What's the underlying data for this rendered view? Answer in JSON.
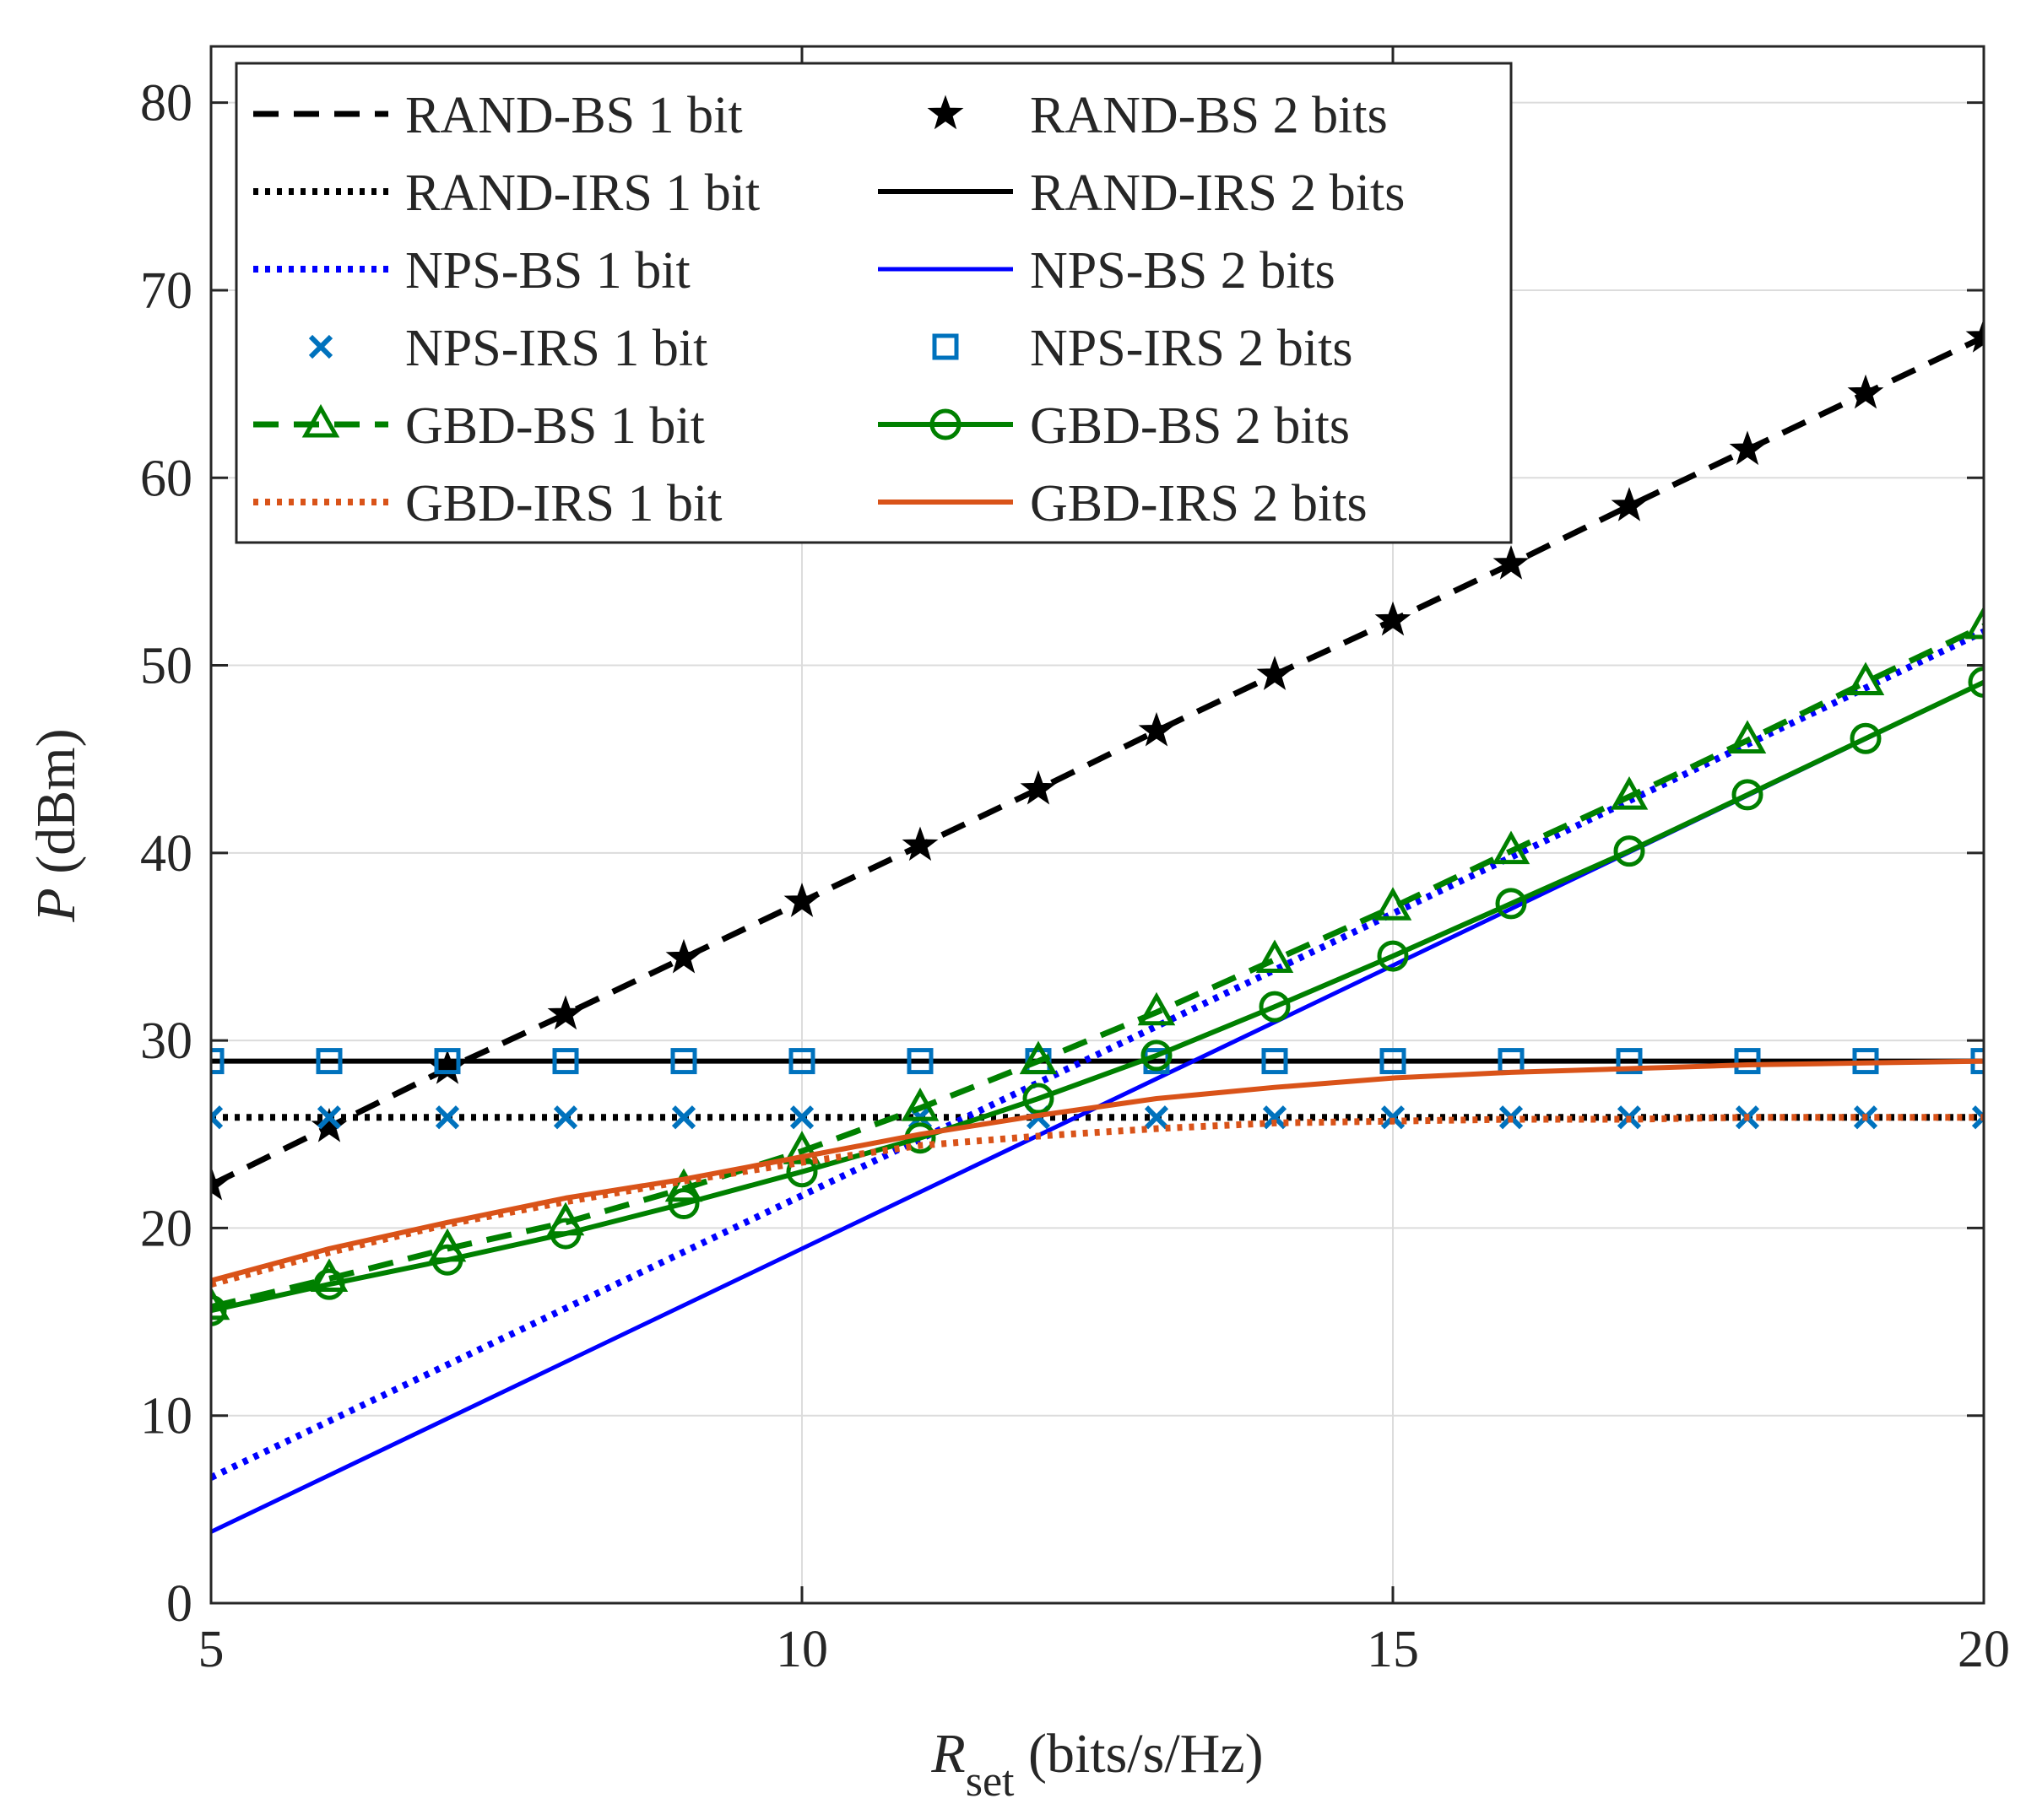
{
  "chart_data": {
    "type": "line",
    "xlabel": {
      "main": "R",
      "sub": "set",
      "rest": " (bits/s/Hz)"
    },
    "ylabel": {
      "main": "P",
      "rest": " (dBm)"
    },
    "xlim": [
      5,
      20
    ],
    "ylim": [
      0,
      83
    ],
    "xticks": [
      5,
      10,
      15,
      20
    ],
    "yticks": [
      0,
      10,
      20,
      30,
      40,
      50,
      60,
      70,
      80
    ],
    "grid": true,
    "legend_position": "top-left",
    "series": [
      {
        "name": "RAND-BS 1 bit",
        "color": "#000000",
        "line": "dashed",
        "marker": "none",
        "x": [
          5,
          6,
          7,
          8,
          9,
          10,
          11,
          12,
          13,
          14,
          15,
          16,
          17,
          18,
          19,
          20
        ],
        "y": [
          22.3,
          25.4,
          28.5,
          31.4,
          34.4,
          37.4,
          40.4,
          43.4,
          46.5,
          49.5,
          52.4,
          55.4,
          58.5,
          61.5,
          64.5,
          67.5
        ]
      },
      {
        "name": "RAND-BS 2 bits",
        "color": "#000000",
        "line": "none",
        "marker": "star",
        "x": [
          5,
          6,
          7,
          8,
          9,
          10,
          11,
          12,
          13,
          14,
          15,
          16,
          17,
          18,
          19,
          20
        ],
        "y": [
          22.3,
          25.4,
          28.5,
          31.4,
          34.4,
          37.4,
          40.4,
          43.4,
          46.5,
          49.5,
          52.4,
          55.4,
          58.5,
          61.5,
          64.5,
          67.5
        ]
      },
      {
        "name": "RAND-IRS 1 bit",
        "color": "#000000",
        "line": "dotted",
        "marker": "none",
        "x": [
          5,
          20
        ],
        "y": [
          25.9,
          25.9
        ]
      },
      {
        "name": "RAND-IRS 2 bits",
        "color": "#000000",
        "line": "solid",
        "marker": "none",
        "x": [
          5,
          20
        ],
        "y": [
          28.9,
          28.9
        ]
      },
      {
        "name": "NPS-BS 1 bit",
        "color": "#0000ff",
        "line": "dotted",
        "marker": "none",
        "x": [
          5,
          20
        ],
        "y": [
          6.7,
          51.8
        ]
      },
      {
        "name": "NPS-BS 2 bits",
        "color": "#0000ff",
        "line": "solid-thin",
        "marker": "none",
        "x": [
          5,
          20
        ],
        "y": [
          3.8,
          49.1
        ]
      },
      {
        "name": "NPS-IRS 1 bit",
        "color": "#0072bd",
        "line": "none",
        "marker": "x",
        "x": [
          5,
          6,
          7,
          8,
          9,
          10,
          11,
          12,
          13,
          14,
          15,
          16,
          17,
          18,
          19,
          20
        ],
        "y": [
          25.9,
          25.9,
          25.9,
          25.9,
          25.9,
          25.9,
          25.9,
          25.9,
          25.9,
          25.9,
          25.9,
          25.9,
          25.9,
          25.9,
          25.9,
          25.9
        ]
      },
      {
        "name": "NPS-IRS 2 bits",
        "color": "#0072bd",
        "line": "none",
        "marker": "square",
        "x": [
          5,
          6,
          7,
          8,
          9,
          10,
          11,
          12,
          13,
          14,
          15,
          16,
          17,
          18,
          19,
          20
        ],
        "y": [
          28.9,
          28.9,
          28.9,
          28.9,
          28.9,
          28.9,
          28.9,
          28.9,
          28.9,
          28.9,
          28.9,
          28.9,
          28.9,
          28.9,
          28.9,
          28.9
        ]
      },
      {
        "name": "GBD-BS 1 bit",
        "color": "#008000",
        "line": "dashed",
        "marker": "triangle",
        "x": [
          5,
          6,
          7,
          8,
          9,
          10,
          11,
          12,
          13,
          14,
          15,
          16,
          17,
          18,
          19,
          20
        ],
        "y": [
          15.8,
          17.3,
          18.9,
          20.3,
          22.1,
          24.1,
          26.4,
          28.9,
          31.5,
          34.3,
          37.1,
          40.1,
          43.0,
          46.0,
          49.1,
          52.1
        ]
      },
      {
        "name": "GBD-BS 2 bits",
        "color": "#008000",
        "line": "solid",
        "marker": "circle",
        "x": [
          5,
          6,
          7,
          8,
          9,
          10,
          11,
          12,
          13,
          14,
          15,
          16,
          17,
          18,
          19,
          20
        ],
        "y": [
          15.6,
          17.0,
          18.3,
          19.7,
          21.3,
          23.0,
          24.8,
          26.9,
          29.2,
          31.8,
          34.5,
          37.3,
          40.1,
          43.1,
          46.1,
          49.1
        ]
      },
      {
        "name": "GBD-IRS 1 bit",
        "color": "#d95319",
        "line": "dotted",
        "marker": "none",
        "x": [
          5,
          6,
          7,
          8,
          9,
          10,
          11,
          12,
          13,
          14,
          15,
          16,
          17,
          18,
          19,
          20
        ],
        "y": [
          17.0,
          18.7,
          20.2,
          21.4,
          22.5,
          23.5,
          24.4,
          24.9,
          25.3,
          25.6,
          25.7,
          25.8,
          25.8,
          25.9,
          25.9,
          25.9
        ]
      },
      {
        "name": "GBD-IRS 2 bits",
        "color": "#d95319",
        "line": "solid",
        "marker": "none",
        "x": [
          5,
          6,
          7,
          8,
          9,
          10,
          11,
          12,
          13,
          14,
          15,
          16,
          17,
          18,
          19,
          20
        ],
        "y": [
          17.2,
          18.9,
          20.3,
          21.6,
          22.6,
          23.8,
          25.0,
          26.0,
          26.9,
          27.5,
          28.0,
          28.3,
          28.5,
          28.7,
          28.8,
          28.9
        ]
      }
    ]
  }
}
